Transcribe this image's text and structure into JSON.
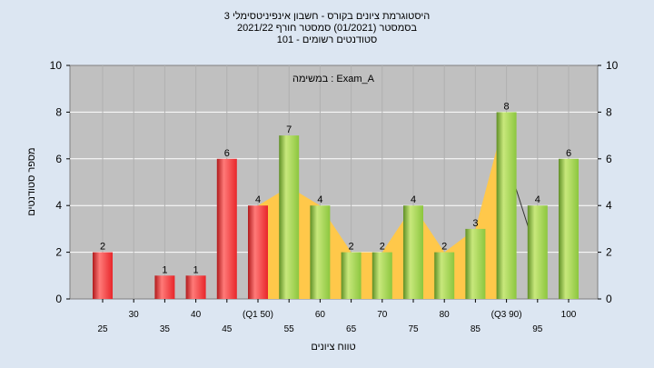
{
  "chart_data": {
    "type": "bar",
    "title_lines": [
      "היסטוגרמת ציונים בקורס - חשבון אינפיניטסימלי 3",
      "בסמסטר  (01/2021)  סמסטר חורף 2021/22",
      "סטודנטים רשומים - 101"
    ],
    "annotation": "במשימה : Exam_A",
    "xlabel": "טווח ציונים",
    "ylabel": "מספר סטודנטים",
    "ylim": [
      0,
      10
    ],
    "yticks": [
      0,
      2,
      4,
      6,
      8,
      10
    ],
    "grid": true,
    "categories": [
      "25",
      "30",
      "35",
      "40",
      "45",
      "(Q1 50)",
      "55",
      "60",
      "65",
      "70",
      "75",
      "80",
      "85",
      "(Q3 90)",
      "95",
      "100"
    ],
    "values": [
      2,
      0,
      1,
      1,
      6,
      4,
      7,
      4,
      2,
      2,
      4,
      2,
      3,
      8,
      4,
      6
    ],
    "bar_colors": [
      "red",
      "none",
      "red",
      "red",
      "red",
      "red",
      "green",
      "green",
      "green",
      "green",
      "green",
      "green",
      "green",
      "green",
      "green",
      "green"
    ],
    "colors": {
      "red": "#e8262a",
      "green": "#8cc63e",
      "area": "#ffc84a",
      "plot_bg": "#c0c0c0"
    }
  }
}
